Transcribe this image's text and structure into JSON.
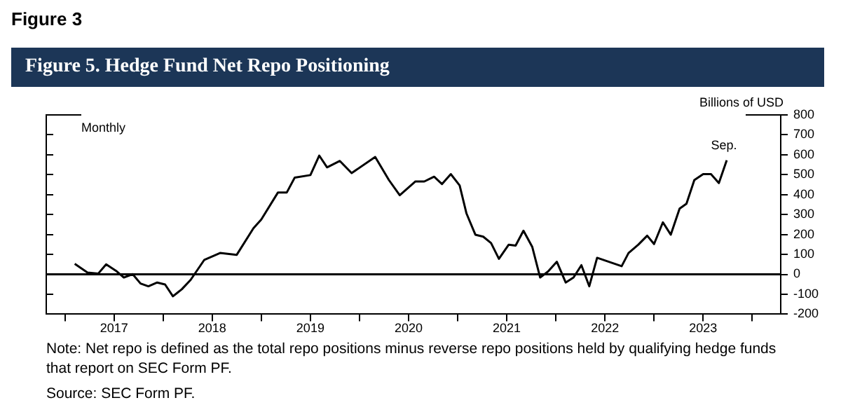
{
  "chart_data": {
    "type": "line",
    "subtitle": "Figure 3",
    "title": "Figure 5. Hedge Fund Net Repo Positioning",
    "ylabel": "Billions of USD",
    "annotations": [
      "Monthly",
      {
        "text": "Sep.",
        "x": 2023.74,
        "y": 572
      },
      "Note: Net repo is defined as the total repo positions minus reverse repo positions held by qualifying hedge funds that report on SEC Form PF.",
      "Source: SEC Form PF."
    ],
    "x": [
      2017.1,
      2017.23,
      2017.34,
      2017.42,
      2017.52,
      2017.6,
      2017.69,
      2017.77,
      2017.85,
      2017.94,
      2018.02,
      2018.1,
      2018.19,
      2018.28,
      2018.42,
      2018.58,
      2018.75,
      2018.92,
      2019.0,
      2019.17,
      2019.26,
      2019.34,
      2019.5,
      2019.59,
      2019.67,
      2019.8,
      2019.92,
      2020.16,
      2020.3,
      2020.41,
      2020.57,
      2020.66,
      2020.76,
      2020.84,
      2020.93,
      2021.02,
      2021.09,
      2021.18,
      2021.26,
      2021.34,
      2021.42,
      2021.52,
      2021.59,
      2021.67,
      2021.76,
      2021.84,
      2021.92,
      2022.01,
      2022.1,
      2022.18,
      2022.26,
      2022.34,
      2022.42,
      2022.67,
      2022.74,
      2022.84,
      2022.93,
      2023.0,
      2023.09,
      2023.17,
      2023.26,
      2023.33,
      2023.41,
      2023.5,
      2023.58,
      2023.66,
      2023.74
    ],
    "series": [
      {
        "color": "#000000",
        "values": [
          53,
          9,
          4,
          50,
          18,
          -16,
          1,
          -46,
          -60,
          -41,
          -51,
          -110,
          -75,
          -28,
          73,
          107,
          98,
          231,
          275,
          411,
          411,
          485,
          498,
          596,
          537,
          569,
          508,
          589,
          473,
          397,
          466,
          466,
          490,
          453,
          503,
          446,
          305,
          199,
          189,
          157,
          78,
          149,
          144,
          219,
          137,
          -16,
          14,
          63,
          -41,
          -16,
          46,
          -60,
          83,
          41,
          107,
          149,
          194,
          152,
          261,
          199,
          330,
          354,
          473,
          503,
          503,
          458,
          572
        ]
      }
    ],
    "marker": "none",
    "line_style": "solid",
    "xlim": [
      2016.81,
      2024.29
    ],
    "xticks": [
      {
        "value": 2017,
        "label": null
      },
      {
        "value": 2017.5,
        "label": "2017"
      },
      {
        "value": 2018,
        "label": null
      },
      {
        "value": 2018.5,
        "label": "2018"
      },
      {
        "value": 2019,
        "label": null
      },
      {
        "value": 2019.5,
        "label": "2019"
      },
      {
        "value": 2020,
        "label": null
      },
      {
        "value": 2020.5,
        "label": "2020"
      },
      {
        "value": 2021,
        "label": null
      },
      {
        "value": 2021.5,
        "label": "2021"
      },
      {
        "value": 2022,
        "label": null
      },
      {
        "value": 2022.5,
        "label": "2022"
      },
      {
        "value": 2023,
        "label": null
      },
      {
        "value": 2023.5,
        "label": "2023"
      },
      {
        "value": 2024,
        "label": null
      }
    ],
    "ylim": [
      -200,
      800
    ],
    "yticks": [
      -200,
      -100,
      0,
      100,
      200,
      300,
      400,
      500,
      600,
      700,
      800
    ],
    "ref_lines": [
      {
        "axis": "y",
        "value": 0,
        "color": "#000000"
      }
    ]
  }
}
